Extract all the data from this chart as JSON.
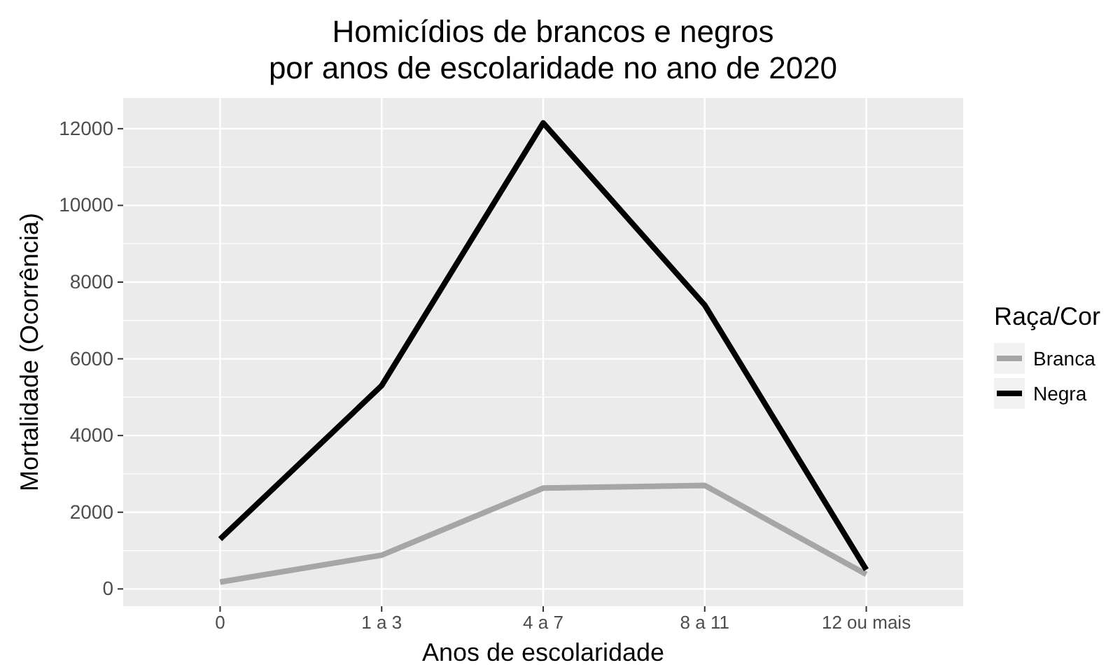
{
  "chart_data": {
    "type": "line",
    "title": "Homicídios de brancos e negros\npor anos de escolaridade no ano de 2020",
    "xlabel": "Anos de escolaridade",
    "ylabel": "Mortalidade (Ocorrência)",
    "legend_title": "Raça/Cor",
    "categories": [
      "0",
      "1 a 3",
      "4 a 7",
      "8 a 11",
      "12 ou mais"
    ],
    "series": [
      {
        "name": "Branca",
        "color": "#a6a6a6",
        "values": [
          180,
          880,
          2630,
          2700,
          380
        ]
      },
      {
        "name": "Negra",
        "color": "#000000",
        "values": [
          1300,
          5300,
          12150,
          7400,
          500
        ]
      }
    ],
    "ylim": [
      -450,
      12800
    ],
    "yticks": [
      0,
      2000,
      4000,
      6000,
      8000,
      10000,
      12000
    ],
    "grid": true,
    "legend": "right",
    "line_style": "solid",
    "marker": "none"
  }
}
